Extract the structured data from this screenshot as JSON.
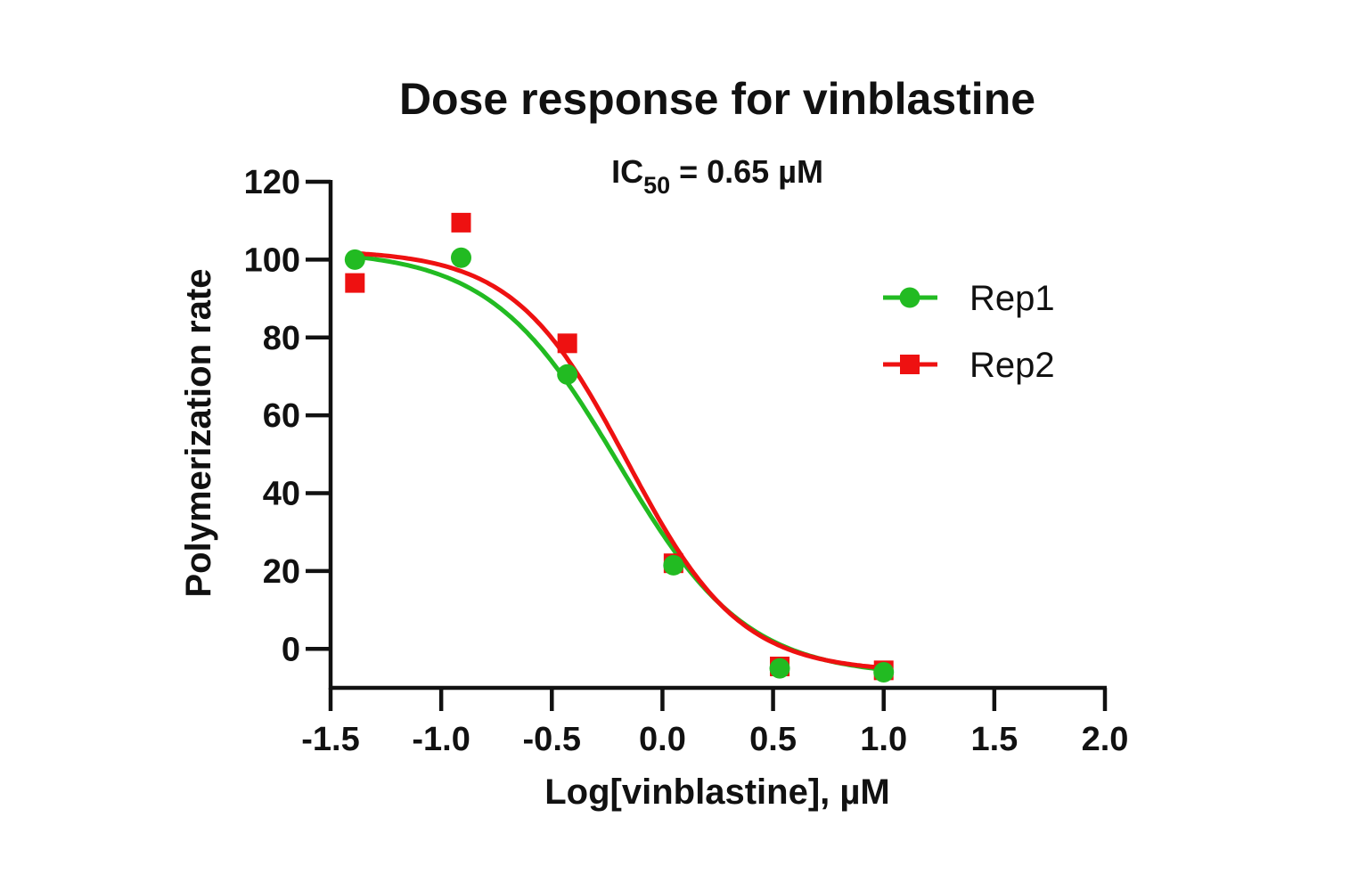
{
  "chart_data": {
    "type": "scatter",
    "title": "Dose response for vinblastine",
    "subtitle": {
      "prefix": "IC",
      "subscript": "50",
      "suffix": " = 0.65 µM"
    },
    "xlabel": "Log[vinblastine], µM",
    "ylabel": "Polymerization rate",
    "xlim": [
      -1.5,
      2.0
    ],
    "ylim": [
      -10,
      120
    ],
    "xticks": [
      -1.5,
      -1.0,
      -0.5,
      0.0,
      0.5,
      1.0,
      1.5,
      2.0
    ],
    "xtick_labels": [
      "-1.5",
      "-1.0",
      "-0.5",
      "0.0",
      "0.5",
      "1.0",
      "1.5",
      "2.0"
    ],
    "yticks": [
      0,
      20,
      40,
      60,
      80,
      100,
      120
    ],
    "ytick_labels": [
      "0",
      "20",
      "40",
      "60",
      "80",
      "100",
      "120"
    ],
    "grid": false,
    "legend_position": "right",
    "series": [
      {
        "name": "Rep1",
        "color": "#22bb22",
        "marker": "circle",
        "x": [
          -1.39,
          -0.91,
          -0.43,
          0.05,
          0.53,
          1.0
        ],
        "y": [
          100,
          100.5,
          70.5,
          21.5,
          -5,
          -6
        ],
        "fit": {
          "top": 102.5,
          "bottom": -7,
          "logIC50": -0.2,
          "hill": -1.5
        }
      },
      {
        "name": "Rep2",
        "color": "#ee1111",
        "marker": "square",
        "x": [
          -1.39,
          -0.91,
          -0.43,
          0.05,
          0.53,
          1.0
        ],
        "y": [
          94,
          109.5,
          78.5,
          22,
          -4.5,
          -5.5
        ],
        "fit": {
          "top": 102.5,
          "bottom": -6,
          "logIC50": -0.16,
          "hill": -1.7
        }
      }
    ]
  }
}
